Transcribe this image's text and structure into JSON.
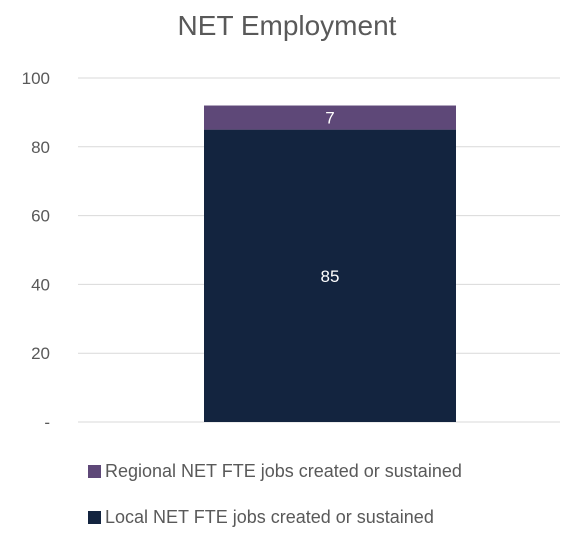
{
  "chart_data": {
    "type": "bar",
    "stacked": true,
    "title": "NET Employment",
    "xlabel": "",
    "ylabel": "",
    "ylim": [
      0,
      100
    ],
    "yticks": [
      {
        "value": 0,
        "label": "-"
      },
      {
        "value": 20,
        "label": "20"
      },
      {
        "value": 40,
        "label": "40"
      },
      {
        "value": 60,
        "label": "60"
      },
      {
        "value": 80,
        "label": "80"
      },
      {
        "value": 100,
        "label": "100"
      }
    ],
    "grid": true,
    "legend_position": "bottom",
    "categories": [
      ""
    ],
    "series": [
      {
        "name": "Local NET FTE jobs created or sustained",
        "values": [
          85
        ],
        "data_labels": [
          "85"
        ],
        "color": "#13243f"
      },
      {
        "name": "Regional NET FTE jobs created or sustained",
        "values": [
          7
        ],
        "data_labels": [
          "7"
        ],
        "color": "#5e4878"
      }
    ],
    "legend_order": [
      1,
      0
    ]
  }
}
